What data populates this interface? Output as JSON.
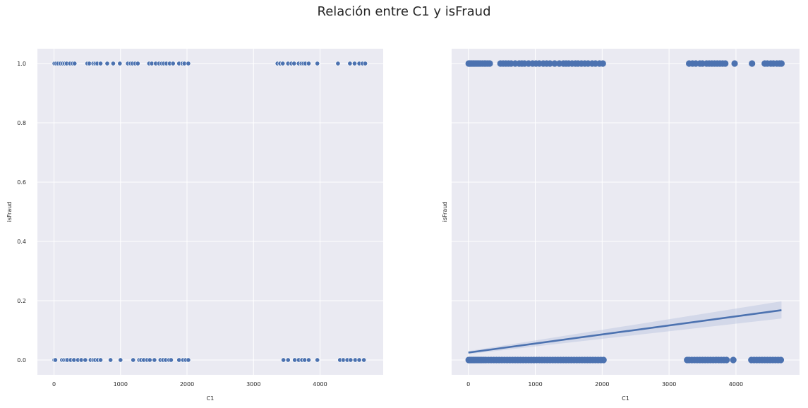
{
  "figure": {
    "title": "Relación entre C1 y isFraud"
  },
  "colors": {
    "point": "#4c72b0",
    "plot_bg": "#eaeaf2",
    "grid": "#ffffff",
    "band": "#b7c3dd"
  },
  "chart_data": [
    {
      "type": "scatter",
      "xlabel": "C1",
      "ylabel": "isFraud",
      "xlim": [
        -250,
        4950
      ],
      "ylim": [
        -0.05,
        1.05
      ],
      "xticks": [
        0,
        1000,
        2000,
        3000,
        4000
      ],
      "xtick_labels": [
        "0",
        "1000",
        "2000",
        "3000",
        "4000"
      ],
      "yticks": [
        0.0,
        0.2,
        0.4,
        0.6,
        0.8,
        1.0
      ],
      "ytick_labels": [
        "0.0",
        "0.2",
        "0.4",
        "0.6",
        "0.8",
        "1.0"
      ],
      "grid": true,
      "series": [
        {
          "y": 1,
          "x": [
            5,
            30,
            60,
            95,
            130,
            160,
            190,
            240,
            280,
            310,
            500,
            530,
            590,
            620,
            650,
            700,
            800,
            890,
            990,
            1110,
            1150,
            1180,
            1220,
            1260,
            1430,
            1470,
            1530,
            1580,
            1620,
            1650,
            1690,
            1740,
            1790,
            1880,
            1930,
            1960,
            2020,
            3360,
            3400,
            3440,
            3520,
            3570,
            3610,
            3680,
            3720,
            3750,
            3780,
            3830,
            3960,
            4270,
            4450,
            4520,
            4590,
            4640,
            4680
          ]
        },
        {
          "y": 0,
          "x": [
            5,
            20,
            120,
            150,
            180,
            200,
            250,
            300,
            360,
            410,
            470,
            550,
            590,
            620,
            660,
            700,
            850,
            1000,
            1190,
            1280,
            1310,
            1350,
            1400,
            1440,
            1510,
            1600,
            1640,
            1680,
            1730,
            1760,
            1880,
            1940,
            1980,
            2020,
            3450,
            3520,
            3620,
            3680,
            3730,
            3770,
            3830,
            3960,
            4300,
            4350,
            4410,
            4460,
            4530,
            4590,
            4660
          ]
        }
      ]
    },
    {
      "type": "scatter",
      "xlabel": "C1",
      "ylabel": "isFraud",
      "xlim": [
        -250,
        4950
      ],
      "ylim": [
        -0.05,
        1.05
      ],
      "xticks": [
        0,
        1000,
        2000,
        3000,
        4000
      ],
      "xtick_labels": [
        "0",
        "1000",
        "2000",
        "3000",
        "4000"
      ],
      "yticks": [
        0.0,
        0.2,
        0.4,
        0.6,
        0.8,
        1.0
      ],
      "ytick_labels": [],
      "grid": true,
      "regression": {
        "x": [
          0,
          4680
        ],
        "y": [
          0.025,
          0.168
        ],
        "ci_low": [
          0.02,
          0.14
        ],
        "ci_high": [
          0.03,
          0.198
        ]
      },
      "series": [
        {
          "y": 1,
          "x": [
            5,
            15,
            25,
            40,
            55,
            70,
            85,
            100,
            120,
            140,
            160,
            180,
            210,
            240,
            260,
            290,
            320,
            480,
            520,
            560,
            600,
            640,
            700,
            760,
            800,
            840,
            900,
            960,
            1010,
            1060,
            1120,
            1170,
            1220,
            1290,
            1360,
            1420,
            1460,
            1500,
            1550,
            1600,
            1640,
            1690,
            1740,
            1790,
            1850,
            1900,
            1960,
            2010,
            3300,
            3350,
            3400,
            3460,
            3500,
            3560,
            3600,
            3640,
            3680,
            3720,
            3760,
            3800,
            3840,
            3980,
            4240,
            4430,
            4470,
            4520,
            4560,
            4610,
            4650,
            4680
          ]
        },
        {
          "y": 0,
          "x": [
            5,
            15,
            25,
            40,
            55,
            70,
            85,
            100,
            120,
            140,
            160,
            180,
            200,
            230,
            260,
            300,
            340,
            380,
            420,
            460,
            500,
            540,
            580,
            620,
            660,
            700,
            740,
            780,
            820,
            860,
            900,
            940,
            980,
            1020,
            1060,
            1100,
            1140,
            1180,
            1220,
            1260,
            1300,
            1340,
            1380,
            1420,
            1460,
            1500,
            1540,
            1580,
            1620,
            1660,
            1700,
            1740,
            1780,
            1820,
            1860,
            1900,
            1940,
            1980,
            2020,
            3270,
            3300,
            3340,
            3380,
            3420,
            3460,
            3500,
            3540,
            3580,
            3620,
            3660,
            3700,
            3740,
            3780,
            3820,
            3860,
            3960,
            4230,
            4270,
            4310,
            4350,
            4390,
            4430,
            4470,
            4510,
            4550,
            4590,
            4630,
            4670
          ]
        }
      ]
    }
  ]
}
